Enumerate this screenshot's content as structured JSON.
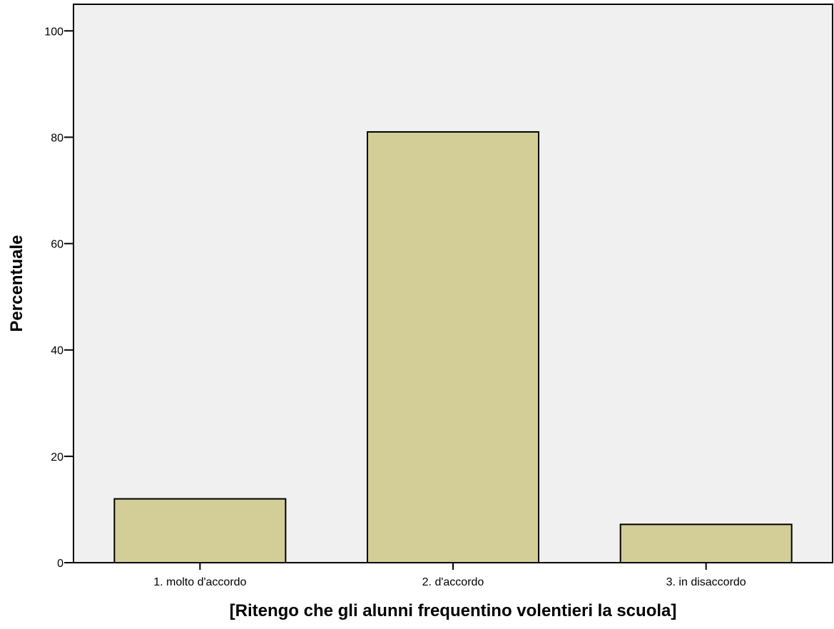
{
  "chart_data": {
    "type": "bar",
    "title": "",
    "xlabel": "[Ritengo che gli alunni frequentino volentieri la scuola]",
    "ylabel": "Percentuale",
    "categories": [
      "1. molto d'accordo",
      "2. d'accordo",
      "3. in disaccordo"
    ],
    "values": [
      12,
      81,
      7.2
    ],
    "ylim": [
      0,
      105
    ],
    "yticks": [
      0,
      20,
      40,
      60,
      80,
      100
    ],
    "grid": false,
    "legend": "none",
    "colors": {
      "plot_background": "#f0f0f0",
      "bar_fill": "#d3ce97",
      "bar_stroke": "#000000"
    }
  }
}
